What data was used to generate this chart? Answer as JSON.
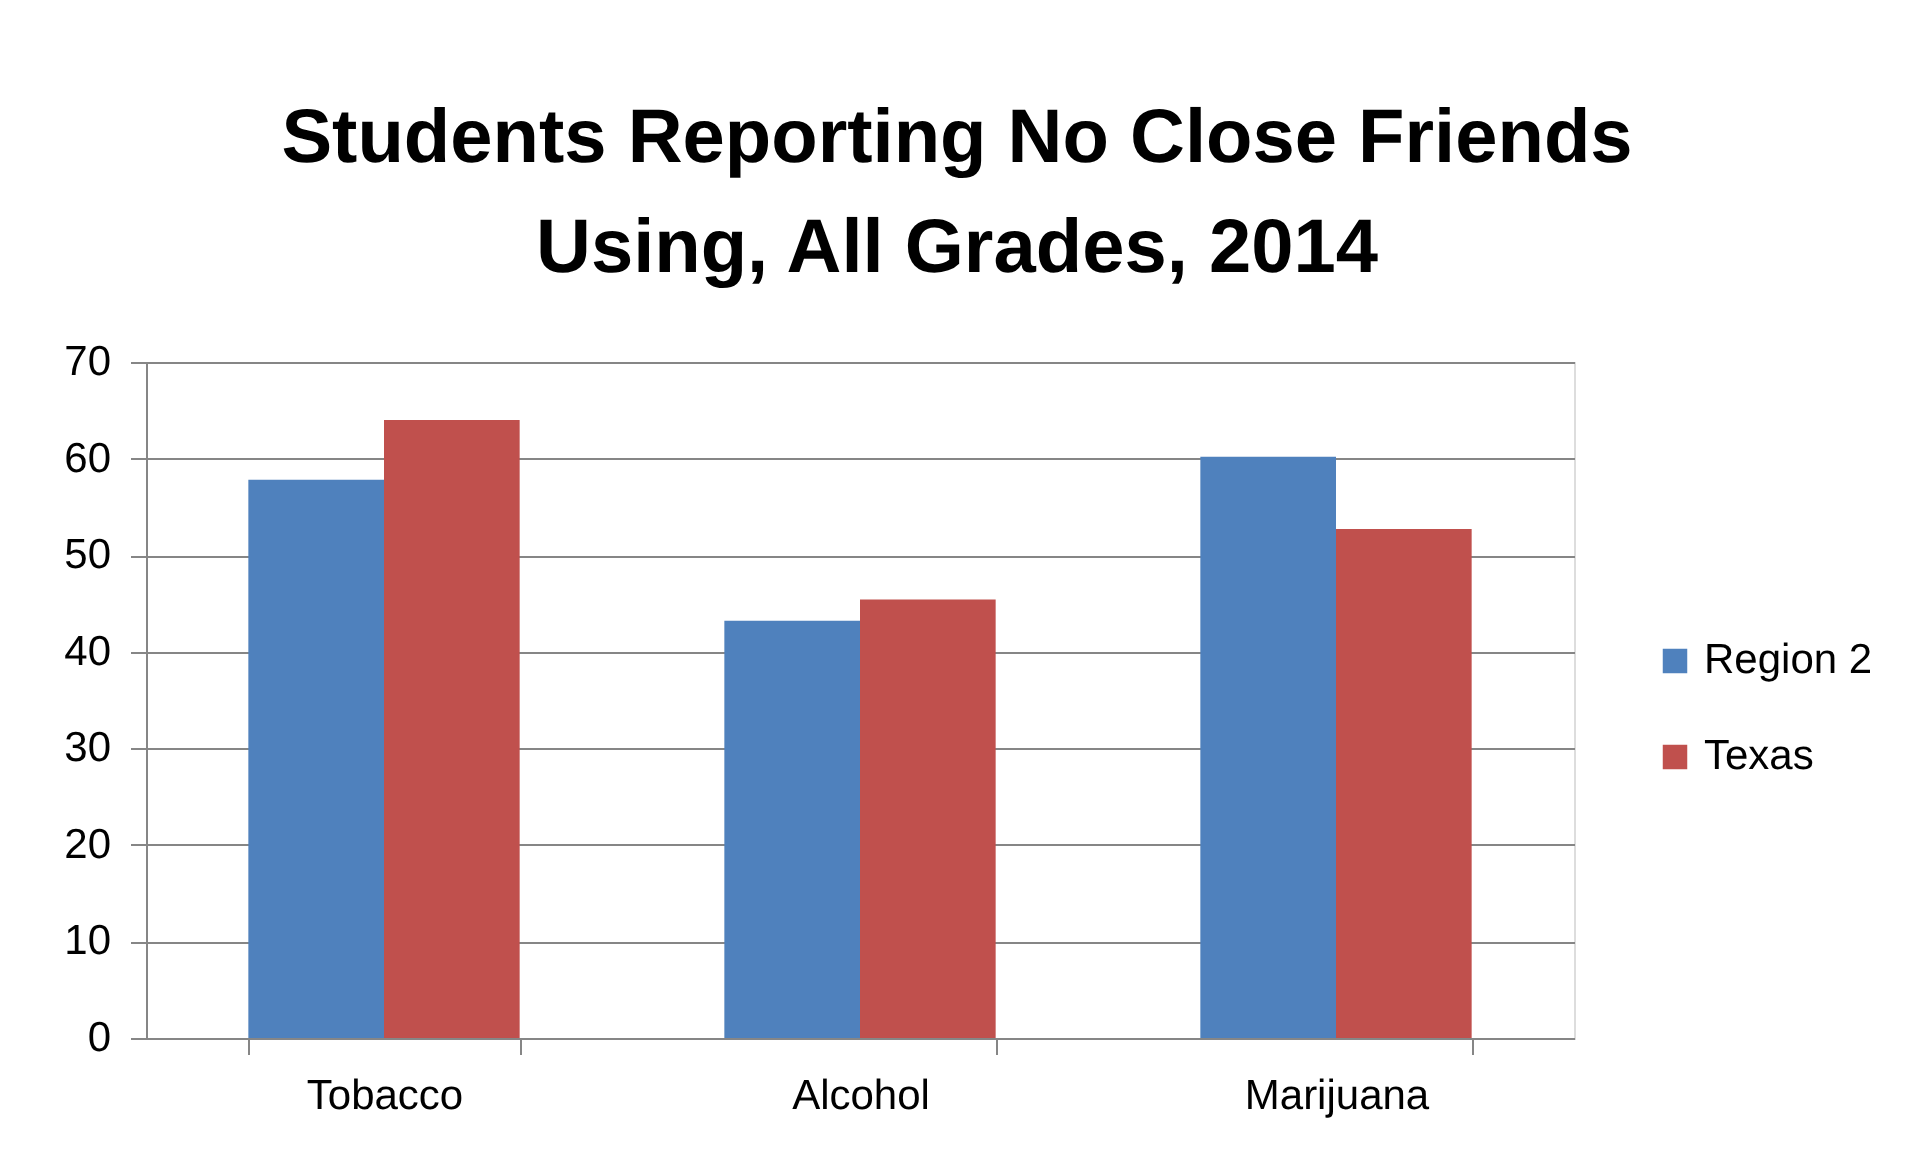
{
  "chart_data": {
    "type": "bar",
    "title": "Students Reporting No Close Friends Using, All Grades, 2014",
    "categories": [
      "Tobacco",
      "Alcohol",
      "Marijuana"
    ],
    "series": [
      {
        "name": "Region 2",
        "color": "#4f81bd",
        "values": [
          57.8,
          43.2,
          60.2
        ]
      },
      {
        "name": "Texas",
        "color": "#c0504d",
        "values": [
          64.0,
          45.4,
          52.7
        ]
      }
    ],
    "ylim": [
      0,
      70
    ],
    "yticks": [
      0,
      10,
      20,
      30,
      40,
      50,
      60,
      70
    ],
    "grid": "y",
    "legend": "right"
  }
}
